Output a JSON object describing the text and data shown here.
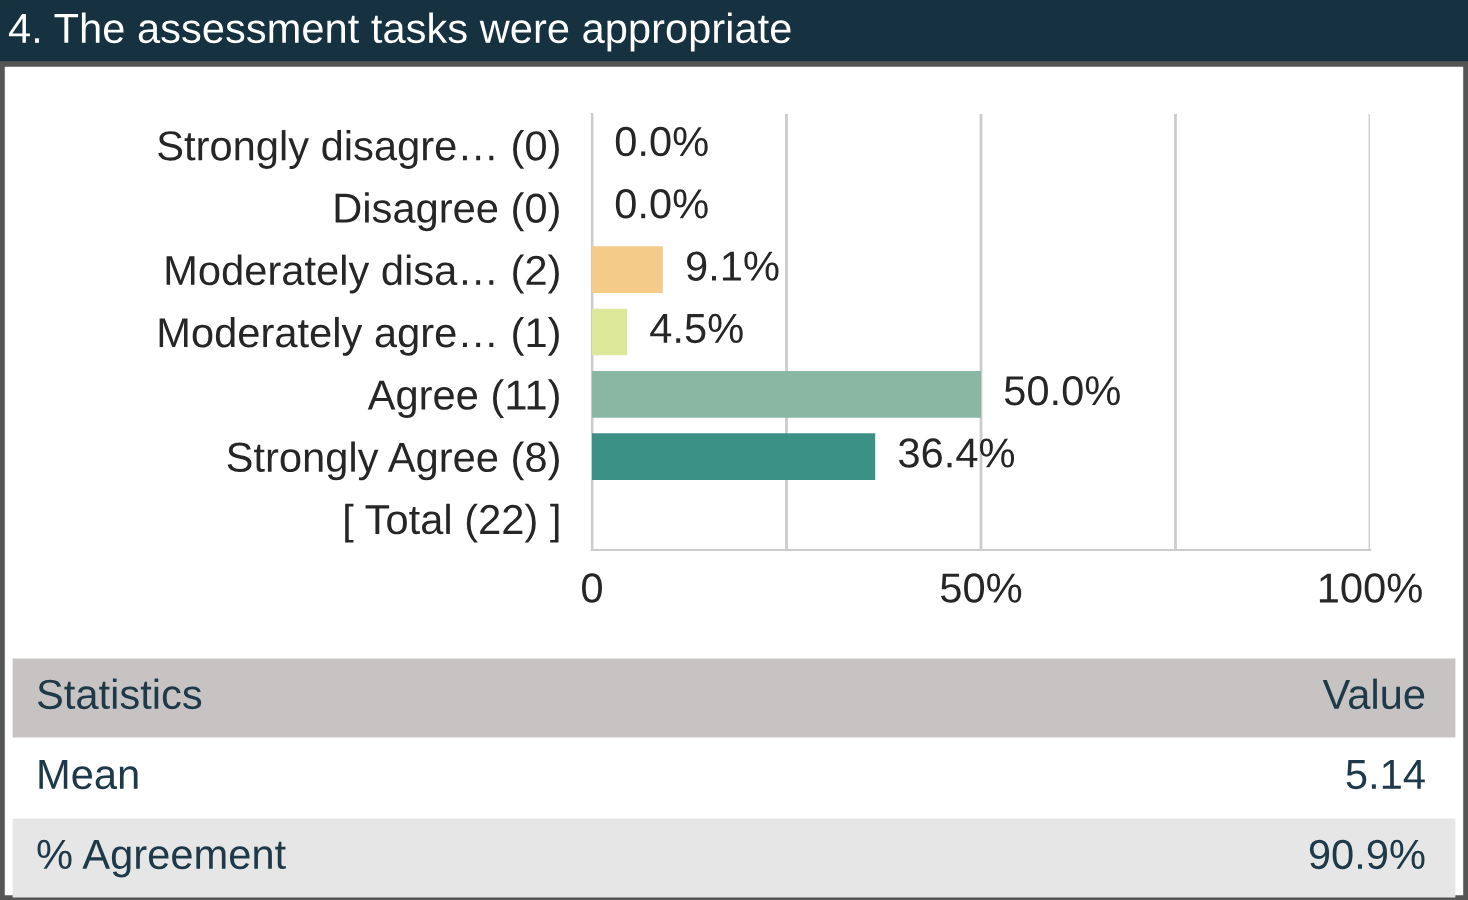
{
  "chart_data": {
    "type": "bar",
    "orientation": "horizontal",
    "title": "4. The assessment tasks were appropriate",
    "categories": [
      "Strongly disagre… (0)",
      "Disagree (0)",
      "Moderately disa… (2)",
      "Moderately agre… (1)",
      "Agree (11)",
      "Strongly Agree (8)",
      "[ Total (22) ]"
    ],
    "values": [
      0.0,
      0.0,
      9.1,
      4.5,
      50.0,
      36.4,
      null
    ],
    "colors": [
      null,
      null,
      "#f5cb8a",
      "#dde89a",
      "#8ab6a4",
      "#3b9186",
      null
    ],
    "value_labels": [
      "0.0%",
      "0.0%",
      "9.1%",
      "4.5%",
      "50.0%",
      "36.4%",
      null
    ],
    "xlim": [
      0,
      100
    ],
    "xticks": [
      0,
      {
        "value": 25,
        "label": null
      },
      {
        "value": 50,
        "label": "50%"
      },
      {
        "value": 75,
        "label": null
      },
      {
        "value": 100,
        "label": "100%"
      }
    ],
    "grid": "x",
    "legend": false,
    "annotations": [
      "Statistics",
      "Value",
      "Mean",
      "5.14",
      "% Agreement",
      "90.9%"
    ]
  }
}
